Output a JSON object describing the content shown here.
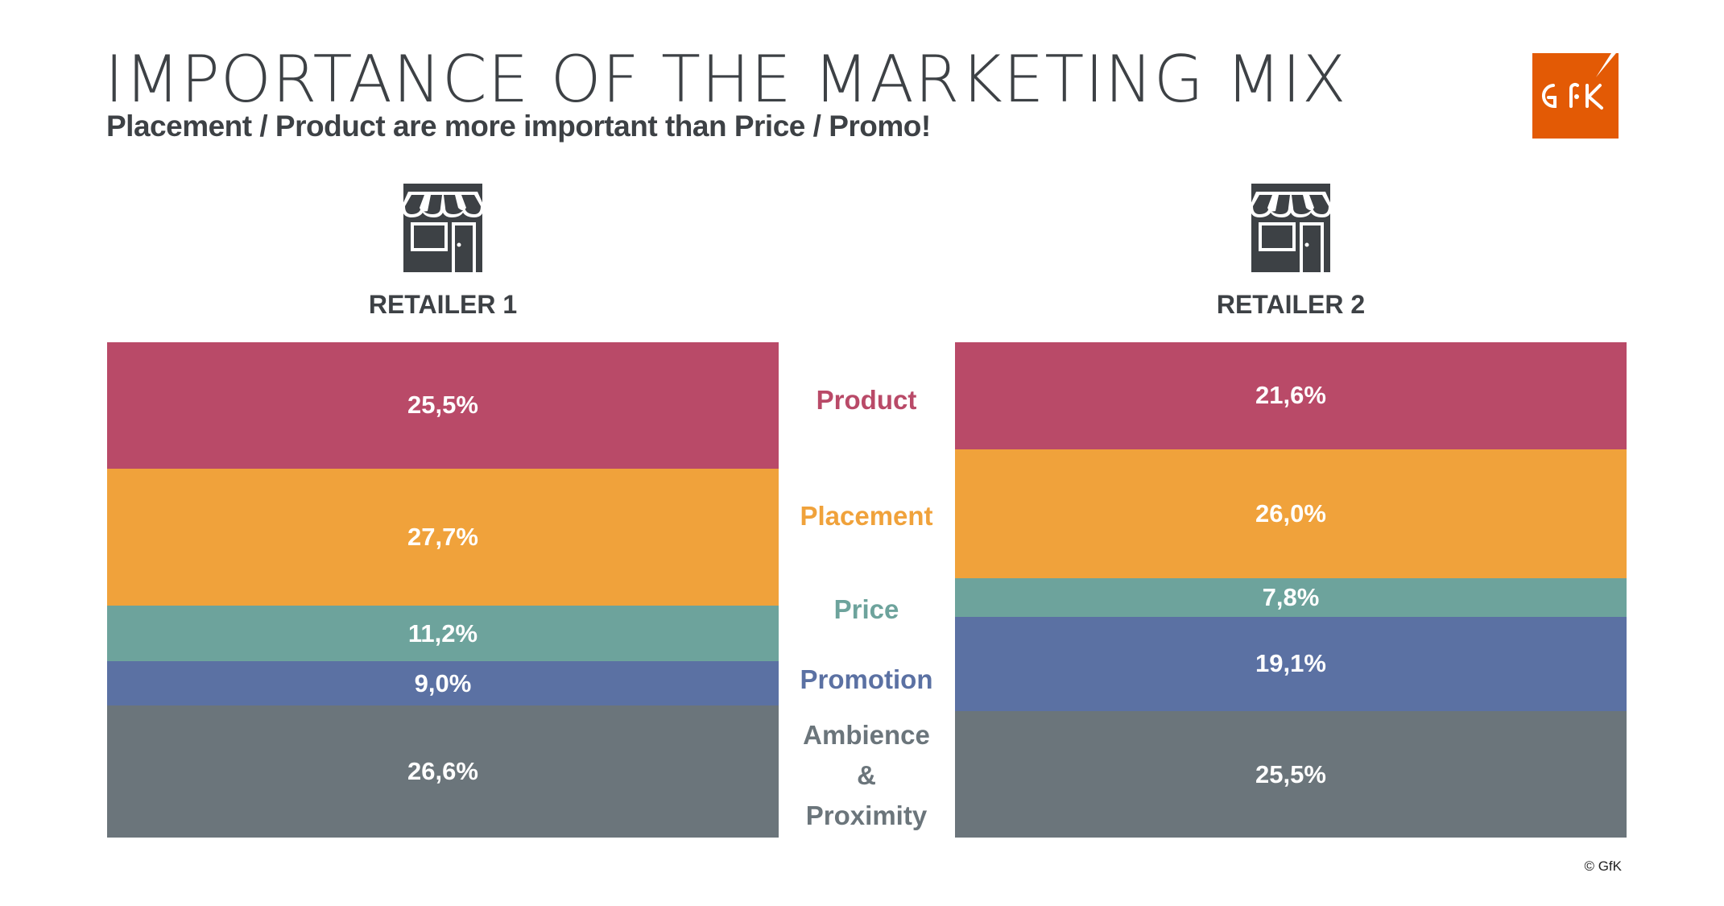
{
  "header": {
    "title": "IMPORTANCE OF THE MARKETING MIX",
    "subtitle": "Placement / Product are more important than Price / Promo!",
    "logo_text": "GfK"
  },
  "footer": {
    "copyright": "© GfK"
  },
  "colors": {
    "Product": "#B94A68",
    "Placement": "#F0A23B",
    "Price": "#6DA39C",
    "Promotion": "#5B71A3",
    "Ambience & Proximity": "#6B757B"
  },
  "chart_data": {
    "type": "bar",
    "stacked": true,
    "title": "IMPORTANCE OF THE MARKETING MIX",
    "categories": [
      "RETAILER 1",
      "RETAILER 2"
    ],
    "legend": [
      "Product",
      "Placement",
      "Price",
      "Promotion",
      "Ambience & Proximity"
    ],
    "legend_lines": [
      [
        "Product"
      ],
      [
        "Placement"
      ],
      [
        "Price"
      ],
      [
        "Promotion"
      ],
      [
        "Ambience",
        "&",
        "Proximity"
      ]
    ],
    "series": [
      {
        "name": "Product",
        "values": [
          25.5,
          21.6
        ],
        "labels": [
          "25,5%",
          "21,6%"
        ]
      },
      {
        "name": "Placement",
        "values": [
          27.7,
          26.0
        ],
        "labels": [
          "27,7%",
          "26,0%"
        ]
      },
      {
        "name": "Price",
        "values": [
          11.2,
          7.8
        ],
        "labels": [
          "11,2%",
          "7,8%"
        ]
      },
      {
        "name": "Promotion",
        "values": [
          9.0,
          19.1
        ],
        "labels": [
          "9,0%",
          "19,1%"
        ]
      },
      {
        "name": "Ambience & Proximity",
        "values": [
          26.6,
          25.5
        ],
        "labels": [
          "26,6%",
          "25,5%"
        ]
      }
    ],
    "ylim": [
      0,
      100
    ]
  }
}
